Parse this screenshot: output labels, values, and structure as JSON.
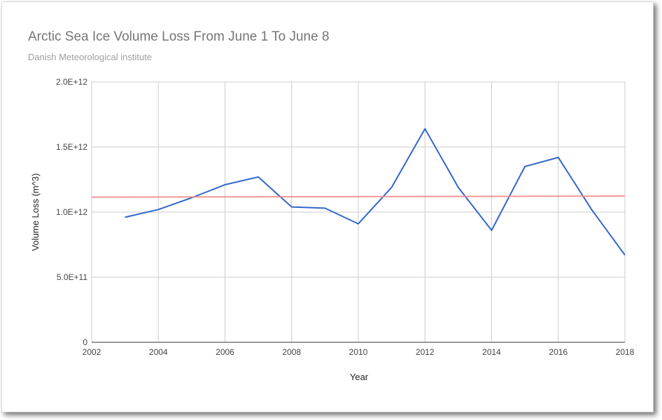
{
  "chart_data": {
    "type": "line",
    "title": "Arctic Sea Ice Volume Loss From June 1 To June 8",
    "subtitle": "Danish Meteorological institute",
    "xlabel": "Year",
    "ylabel": "Volume Loss (m^3)",
    "xlim": [
      2002,
      2018
    ],
    "ylim": [
      0,
      2000000000000
    ],
    "x_ticks": [
      2002,
      2004,
      2006,
      2008,
      2010,
      2012,
      2014,
      2016,
      2018
    ],
    "x_tick_labels": [
      "2002",
      "2004",
      "2006",
      "2008",
      "2010",
      "2012",
      "2014",
      "2016",
      "2018"
    ],
    "y_ticks": [
      0,
      500000000000,
      1000000000000,
      1500000000000,
      2000000000000
    ],
    "y_tick_labels": [
      "0",
      "5.0E+11",
      "1.0E+12",
      "1.5E+12",
      "2.0E+12"
    ],
    "grid": true,
    "legend": "none",
    "series": [
      {
        "color": "#3366cc",
        "x": [
          2003,
          2004,
          2005,
          2006,
          2007,
          2008,
          2009,
          2010,
          2011,
          2012,
          2013,
          2014,
          2015,
          2016,
          2017,
          2018
        ],
        "values": [
          960000000000,
          1020000000000,
          1110000000000,
          1210000000000,
          1270000000000,
          1040000000000,
          1030000000000,
          910000000000,
          1190000000000,
          1640000000000,
          1190000000000,
          860000000000,
          1350000000000,
          1420000000000,
          1020000000000,
          670000000000
        ]
      },
      {
        "color": "#f28b8b",
        "trendline": true,
        "x": [
          2002,
          2018
        ],
        "values": [
          1115000000000,
          1123000000000
        ]
      }
    ]
  }
}
